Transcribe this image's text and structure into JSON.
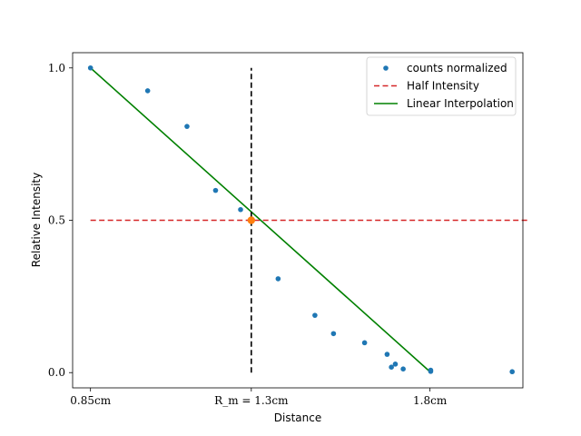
{
  "chart_data": {
    "type": "scatter",
    "xlabel": "Distance",
    "ylabel": "Relative Intensity",
    "xlim": [
      0.8,
      2.06
    ],
    "ylim": [
      -0.05,
      1.05
    ],
    "grid": false,
    "legend_placement": "top-right",
    "x_ticks": [
      {
        "value": 0.85,
        "label": "0.85cm"
      },
      {
        "value": 1.3,
        "label": "R_m = 1.3cm"
      },
      {
        "value": 1.8,
        "label": "1.8cm"
      }
    ],
    "y_ticks": [
      {
        "value": 0.0,
        "label": "0.0"
      },
      {
        "value": 0.5,
        "label": "0.5"
      },
      {
        "value": 1.0,
        "label": "1.0"
      }
    ],
    "series": [
      {
        "name": "counts normalized",
        "kind": "points",
        "color": "#1f77b4",
        "x": [
          0.85,
          1.01,
          1.12,
          1.2,
          1.27,
          1.375,
          1.478,
          1.53,
          1.617,
          1.68,
          1.692,
          1.703,
          1.725,
          1.802,
          1.802,
          2.03
        ],
        "y": [
          1.0,
          0.925,
          0.808,
          0.598,
          0.535,
          0.308,
          0.188,
          0.128,
          0.098,
          0.06,
          0.018,
          0.028,
          0.012,
          0.008,
          0.004,
          0.003
        ]
      },
      {
        "name": "Half Intensity",
        "kind": "hline",
        "color": "#d62728",
        "dash": "dashed",
        "y": 0.5,
        "x_range": [
          0.85,
          2.08
        ]
      },
      {
        "name": "Linear Interpolation",
        "kind": "line",
        "color": "#008000",
        "x": [
          0.85,
          1.8
        ],
        "y": [
          1.0,
          0.003
        ]
      }
    ],
    "annotations": [
      {
        "kind": "vline",
        "color": "#000000",
        "dash": "dashed",
        "x": 1.3,
        "y_range": [
          0.0,
          1.0
        ]
      },
      {
        "kind": "marker",
        "color": "#ff7f0e",
        "x": 1.3,
        "y": 0.5
      }
    ]
  }
}
